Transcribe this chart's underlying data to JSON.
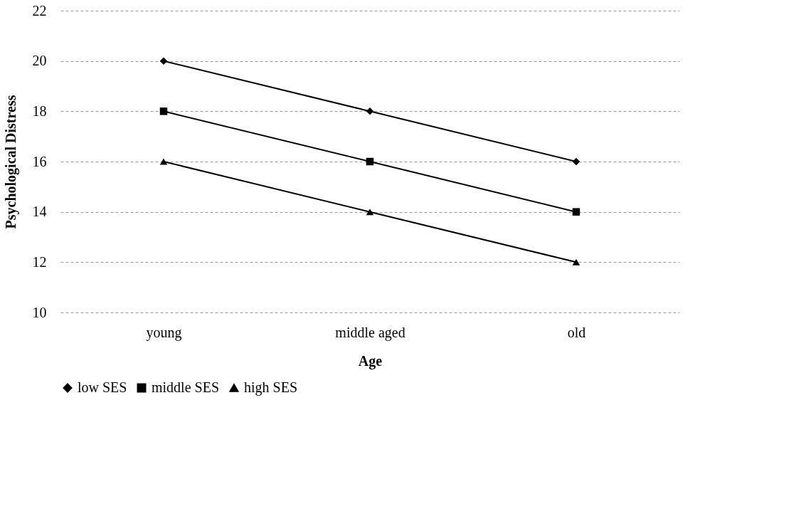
{
  "chart_data": {
    "type": "line",
    "xlabel": "Age",
    "ylabel": "Psychological Distress",
    "categories": [
      "young",
      "middle aged",
      "old"
    ],
    "series": [
      {
        "name": "low SES",
        "color": "#000000",
        "marker": "diamond",
        "values": [
          20,
          18,
          16
        ]
      },
      {
        "name": "middle SES",
        "color": "#000000",
        "marker": "square",
        "values": [
          18,
          16,
          14
        ]
      },
      {
        "name": "high SES",
        "color": "#000000",
        "marker": "triangle",
        "values": [
          16,
          14,
          12
        ]
      }
    ],
    "ylim": [
      10,
      22
    ],
    "yticks": [
      10,
      12,
      14,
      16,
      18,
      20,
      22
    ],
    "grid": "y",
    "legend": "bottom",
    "line_style": "solid"
  }
}
